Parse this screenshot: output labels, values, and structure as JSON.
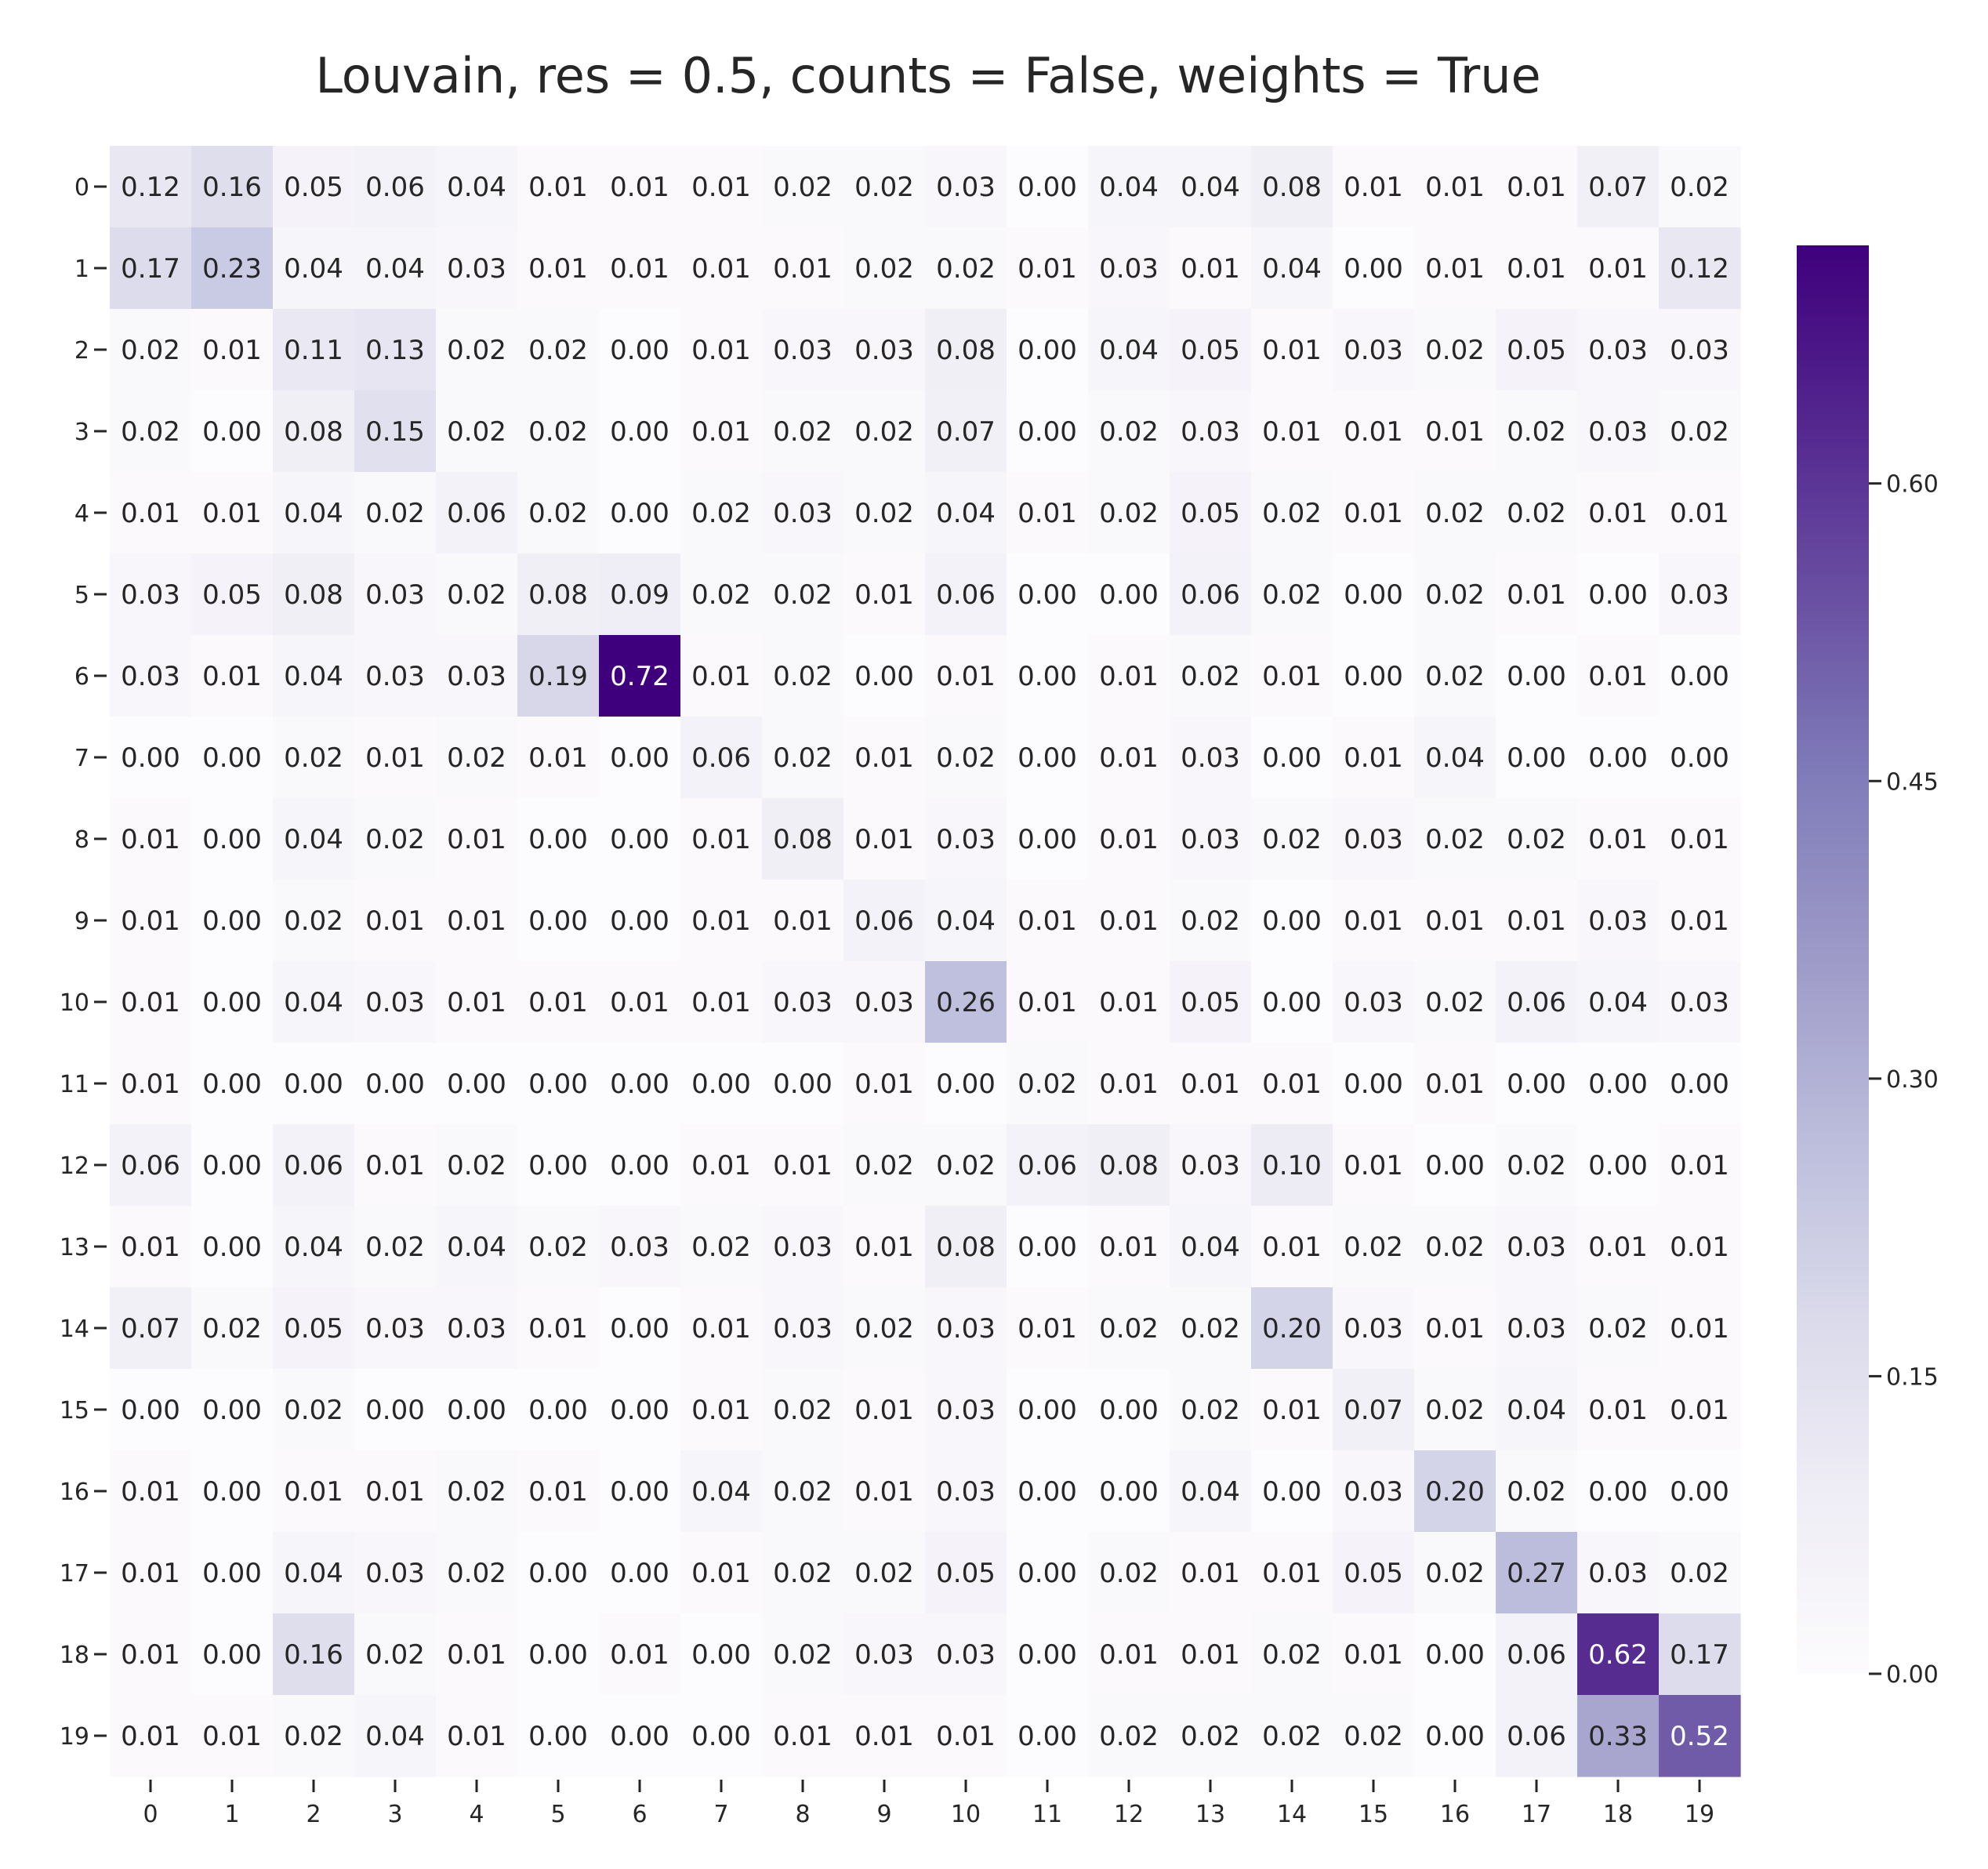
{
  "chart_data": {
    "type": "heatmap",
    "title": "Louvain, res = 0.5, counts = False, weights = True",
    "xlabel": "",
    "ylabel": "",
    "x_categories": [
      "0",
      "1",
      "2",
      "3",
      "4",
      "5",
      "6",
      "7",
      "8",
      "9",
      "10",
      "11",
      "12",
      "13",
      "14",
      "15",
      "16",
      "17",
      "18",
      "19"
    ],
    "y_categories": [
      "0",
      "1",
      "2",
      "3",
      "4",
      "5",
      "6",
      "7",
      "8",
      "9",
      "10",
      "11",
      "12",
      "13",
      "14",
      "15",
      "16",
      "17",
      "18",
      "19"
    ],
    "values": [
      [
        0.12,
        0.16,
        0.05,
        0.06,
        0.04,
        0.01,
        0.01,
        0.01,
        0.02,
        0.02,
        0.03,
        0.0,
        0.04,
        0.04,
        0.08,
        0.01,
        0.01,
        0.01,
        0.07,
        0.02
      ],
      [
        0.17,
        0.23,
        0.04,
        0.04,
        0.03,
        0.01,
        0.01,
        0.01,
        0.01,
        0.02,
        0.02,
        0.01,
        0.03,
        0.01,
        0.04,
        0.0,
        0.01,
        0.01,
        0.01,
        0.12
      ],
      [
        0.02,
        0.01,
        0.11,
        0.13,
        0.02,
        0.02,
        0.0,
        0.01,
        0.03,
        0.03,
        0.08,
        0.0,
        0.04,
        0.05,
        0.01,
        0.03,
        0.02,
        0.05,
        0.03,
        0.03
      ],
      [
        0.02,
        0.0,
        0.08,
        0.15,
        0.02,
        0.02,
        0.0,
        0.01,
        0.02,
        0.02,
        0.07,
        0.0,
        0.02,
        0.03,
        0.01,
        0.01,
        0.01,
        0.02,
        0.03,
        0.02
      ],
      [
        0.01,
        0.01,
        0.04,
        0.02,
        0.06,
        0.02,
        0.0,
        0.02,
        0.03,
        0.02,
        0.04,
        0.01,
        0.02,
        0.05,
        0.02,
        0.01,
        0.02,
        0.02,
        0.01,
        0.01
      ],
      [
        0.03,
        0.05,
        0.08,
        0.03,
        0.02,
        0.08,
        0.09,
        0.02,
        0.02,
        0.01,
        0.06,
        0.0,
        0.0,
        0.06,
        0.02,
        0.0,
        0.02,
        0.01,
        0.0,
        0.03
      ],
      [
        0.03,
        0.01,
        0.04,
        0.03,
        0.03,
        0.19,
        0.72,
        0.01,
        0.02,
        0.0,
        0.01,
        0.0,
        0.01,
        0.02,
        0.01,
        0.0,
        0.02,
        0.0,
        0.01,
        0.0
      ],
      [
        0.0,
        0.0,
        0.02,
        0.01,
        0.02,
        0.01,
        0.0,
        0.06,
        0.02,
        0.01,
        0.02,
        0.0,
        0.01,
        0.03,
        0.0,
        0.01,
        0.04,
        0.0,
        0.0,
        0.0
      ],
      [
        0.01,
        0.0,
        0.04,
        0.02,
        0.01,
        0.0,
        0.0,
        0.01,
        0.08,
        0.01,
        0.03,
        0.0,
        0.01,
        0.03,
        0.02,
        0.03,
        0.02,
        0.02,
        0.01,
        0.01
      ],
      [
        0.01,
        0.0,
        0.02,
        0.01,
        0.01,
        0.0,
        0.0,
        0.01,
        0.01,
        0.06,
        0.04,
        0.01,
        0.01,
        0.02,
        0.0,
        0.01,
        0.01,
        0.01,
        0.03,
        0.01
      ],
      [
        0.01,
        0.0,
        0.04,
        0.03,
        0.01,
        0.01,
        0.01,
        0.01,
        0.03,
        0.03,
        0.26,
        0.01,
        0.01,
        0.05,
        0.0,
        0.03,
        0.02,
        0.06,
        0.04,
        0.03
      ],
      [
        0.01,
        0.0,
        0.0,
        0.0,
        0.0,
        0.0,
        0.0,
        0.0,
        0.0,
        0.01,
        0.0,
        0.02,
        0.01,
        0.01,
        0.01,
        0.0,
        0.01,
        0.0,
        0.0,
        0.0
      ],
      [
        0.06,
        0.0,
        0.06,
        0.01,
        0.02,
        0.0,
        0.0,
        0.01,
        0.01,
        0.02,
        0.02,
        0.06,
        0.08,
        0.03,
        0.1,
        0.01,
        0.0,
        0.02,
        0.0,
        0.01
      ],
      [
        0.01,
        0.0,
        0.04,
        0.02,
        0.04,
        0.02,
        0.03,
        0.02,
        0.03,
        0.01,
        0.08,
        0.0,
        0.01,
        0.04,
        0.01,
        0.02,
        0.02,
        0.03,
        0.01,
        0.01
      ],
      [
        0.07,
        0.02,
        0.05,
        0.03,
        0.03,
        0.01,
        0.0,
        0.01,
        0.03,
        0.02,
        0.03,
        0.01,
        0.02,
        0.02,
        0.2,
        0.03,
        0.01,
        0.03,
        0.02,
        0.01
      ],
      [
        0.0,
        0.0,
        0.02,
        0.0,
        0.0,
        0.0,
        0.0,
        0.01,
        0.02,
        0.01,
        0.03,
        0.0,
        0.0,
        0.02,
        0.01,
        0.07,
        0.02,
        0.04,
        0.01,
        0.01
      ],
      [
        0.01,
        0.0,
        0.01,
        0.01,
        0.02,
        0.01,
        0.0,
        0.04,
        0.02,
        0.01,
        0.03,
        0.0,
        0.0,
        0.04,
        0.0,
        0.03,
        0.2,
        0.02,
        0.0,
        0.0
      ],
      [
        0.01,
        0.0,
        0.04,
        0.03,
        0.02,
        0.0,
        0.0,
        0.01,
        0.02,
        0.02,
        0.05,
        0.0,
        0.02,
        0.01,
        0.01,
        0.05,
        0.02,
        0.27,
        0.03,
        0.02
      ],
      [
        0.01,
        0.0,
        0.16,
        0.02,
        0.01,
        0.0,
        0.01,
        0.0,
        0.02,
        0.03,
        0.03,
        0.0,
        0.01,
        0.01,
        0.02,
        0.01,
        0.0,
        0.06,
        0.62,
        0.17
      ],
      [
        0.01,
        0.01,
        0.02,
        0.04,
        0.01,
        0.0,
        0.0,
        0.0,
        0.01,
        0.01,
        0.01,
        0.0,
        0.02,
        0.02,
        0.02,
        0.02,
        0.0,
        0.06,
        0.33,
        0.52
      ]
    ],
    "value_format": "2 decimals",
    "colormap": "Purples",
    "color_range": [
      0.0,
      0.72
    ],
    "colorbar_ticks": [
      "0.00",
      "0.15",
      "0.30",
      "0.45",
      "0.60"
    ],
    "colorbar_tick_values": [
      0.0,
      0.15,
      0.3,
      0.45,
      0.6
    ],
    "grid": false,
    "legend": "colorbar-right"
  }
}
